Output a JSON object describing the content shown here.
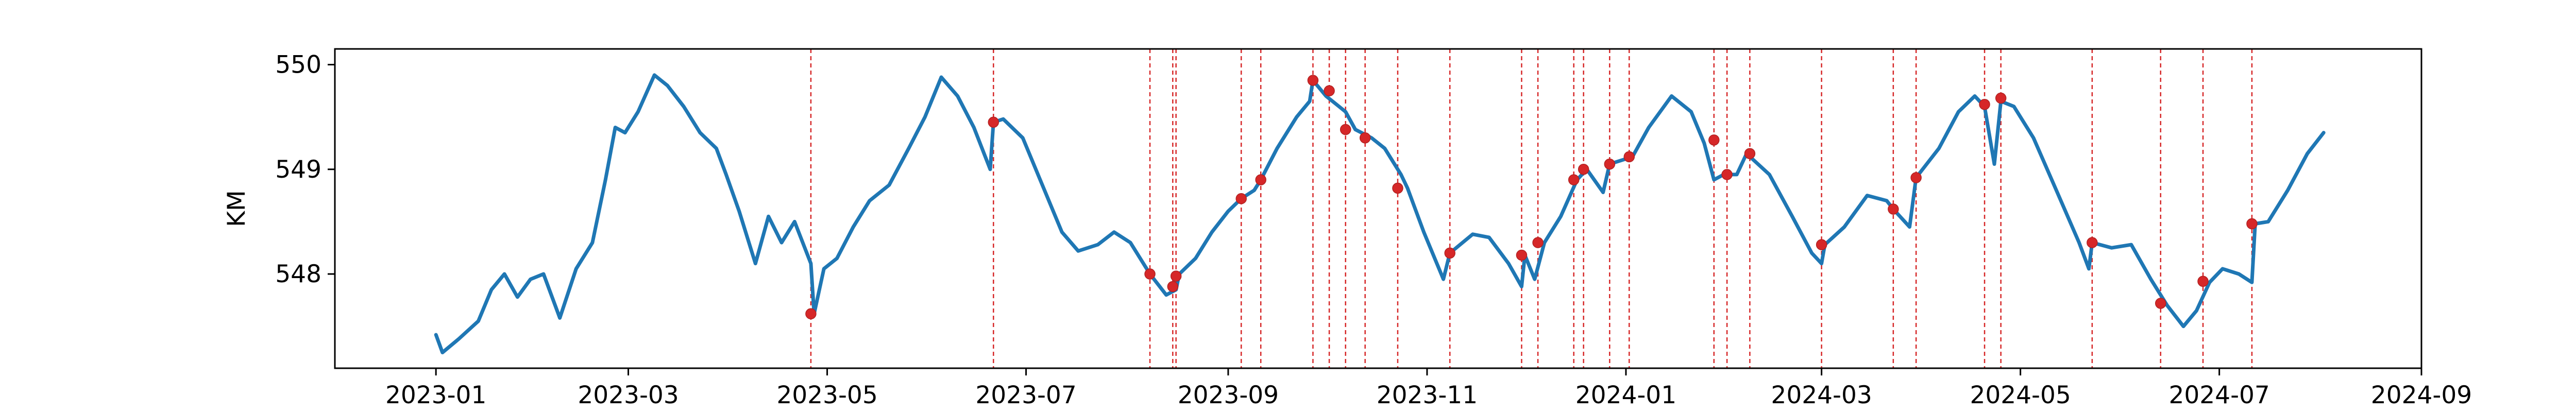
{
  "chart_data": {
    "type": "line",
    "title": "",
    "xlabel": "",
    "ylabel": "KM",
    "ylim": [
      547.1,
      550.15
    ],
    "xlim": [
      "2022-12-01",
      "2024-09-01"
    ],
    "x_ticks": [
      "2023-01",
      "2023-03",
      "2023-05",
      "2023-07",
      "2023-09",
      "2023-11",
      "2024-01",
      "2024-03",
      "2024-05",
      "2024-07",
      "2024-09"
    ],
    "y_ticks": [
      548,
      549,
      550
    ],
    "grid": false,
    "series": [
      {
        "name": "KM",
        "color": "#1f77b4",
        "points": [
          [
            "2023-01-01",
            547.42
          ],
          [
            "2023-01-03",
            547.25
          ],
          [
            "2023-01-08",
            547.38
          ],
          [
            "2023-01-14",
            547.55
          ],
          [
            "2023-01-18",
            547.85
          ],
          [
            "2023-01-22",
            548.0
          ],
          [
            "2023-01-26",
            547.78
          ],
          [
            "2023-01-30",
            547.95
          ],
          [
            "2023-02-03",
            548.0
          ],
          [
            "2023-02-08",
            547.58
          ],
          [
            "2023-02-13",
            548.05
          ],
          [
            "2023-02-18",
            548.3
          ],
          [
            "2023-02-22",
            548.9
          ],
          [
            "2023-02-25",
            549.4
          ],
          [
            "2023-02-28",
            549.35
          ],
          [
            "2023-03-04",
            549.55
          ],
          [
            "2023-03-09",
            549.9
          ],
          [
            "2023-03-13",
            549.8
          ],
          [
            "2023-03-18",
            549.6
          ],
          [
            "2023-03-23",
            549.35
          ],
          [
            "2023-03-28",
            549.2
          ],
          [
            "2023-03-31",
            548.95
          ],
          [
            "2023-04-04",
            548.6
          ],
          [
            "2023-04-09",
            548.1
          ],
          [
            "2023-04-13",
            548.55
          ],
          [
            "2023-04-17",
            548.3
          ],
          [
            "2023-04-21",
            548.5
          ],
          [
            "2023-04-26",
            548.1
          ],
          [
            "2023-04-27",
            547.62
          ],
          [
            "2023-04-30",
            548.05
          ],
          [
            "2023-05-04",
            548.15
          ],
          [
            "2023-05-09",
            548.45
          ],
          [
            "2023-05-14",
            548.7
          ],
          [
            "2023-05-20",
            548.85
          ],
          [
            "2023-05-26",
            549.2
          ],
          [
            "2023-05-31",
            549.5
          ],
          [
            "2023-06-05",
            549.88
          ],
          [
            "2023-06-10",
            549.7
          ],
          [
            "2023-06-15",
            549.4
          ],
          [
            "2023-06-20",
            549.0
          ],
          [
            "2023-06-21",
            549.45
          ],
          [
            "2023-06-24",
            549.48
          ],
          [
            "2023-06-30",
            549.3
          ],
          [
            "2023-07-06",
            548.85
          ],
          [
            "2023-07-12",
            548.4
          ],
          [
            "2023-07-17",
            548.22
          ],
          [
            "2023-07-23",
            548.28
          ],
          [
            "2023-07-28",
            548.4
          ],
          [
            "2023-08-02",
            548.3
          ],
          [
            "2023-08-08",
            548.0
          ],
          [
            "2023-08-13",
            547.8
          ],
          [
            "2023-08-16",
            547.85
          ],
          [
            "2023-08-17",
            548.0
          ],
          [
            "2023-08-22",
            548.15
          ],
          [
            "2023-08-27",
            548.4
          ],
          [
            "2023-09-01",
            548.6
          ],
          [
            "2023-09-05",
            548.72
          ],
          [
            "2023-09-09",
            548.8
          ],
          [
            "2023-09-11",
            548.9
          ],
          [
            "2023-09-16",
            549.2
          ],
          [
            "2023-09-22",
            549.5
          ],
          [
            "2023-09-26",
            549.65
          ],
          [
            "2023-09-27",
            549.85
          ],
          [
            "2023-10-01",
            549.7
          ],
          [
            "2023-10-05",
            549.6
          ],
          [
            "2023-10-07",
            549.55
          ],
          [
            "2023-10-10",
            549.38
          ],
          [
            "2023-10-15",
            549.3
          ],
          [
            "2023-10-19",
            549.2
          ],
          [
            "2023-10-24",
            548.95
          ],
          [
            "2023-10-26",
            548.82
          ],
          [
            "2023-10-31",
            548.4
          ],
          [
            "2023-11-06",
            547.95
          ],
          [
            "2023-11-08",
            548.2
          ],
          [
            "2023-11-15",
            548.38
          ],
          [
            "2023-11-20",
            548.35
          ],
          [
            "2023-11-26",
            548.1
          ],
          [
            "2023-11-30",
            547.88
          ],
          [
            "2023-12-01",
            548.18
          ],
          [
            "2023-12-04",
            547.95
          ],
          [
            "2023-12-07",
            548.3
          ],
          [
            "2023-12-12",
            548.55
          ],
          [
            "2023-12-17",
            548.9
          ],
          [
            "2023-12-20",
            549.0
          ],
          [
            "2023-12-25",
            548.78
          ],
          [
            "2023-12-27",
            549.05
          ],
          [
            "2024-01-03",
            549.12
          ],
          [
            "2024-01-08",
            549.4
          ],
          [
            "2024-01-15",
            549.7
          ],
          [
            "2024-01-21",
            549.55
          ],
          [
            "2024-01-25",
            549.25
          ],
          [
            "2024-01-28",
            548.9
          ],
          [
            "2024-01-31",
            548.95
          ],
          [
            "2024-02-04",
            548.95
          ],
          [
            "2024-02-07",
            549.15
          ],
          [
            "2024-02-14",
            548.95
          ],
          [
            "2024-02-21",
            548.55
          ],
          [
            "2024-02-27",
            548.2
          ],
          [
            "2024-03-01",
            548.1
          ],
          [
            "2024-03-02",
            548.28
          ],
          [
            "2024-03-08",
            548.45
          ],
          [
            "2024-03-15",
            548.75
          ],
          [
            "2024-03-21",
            548.7
          ],
          [
            "2024-03-23",
            548.62
          ],
          [
            "2024-03-28",
            548.45
          ],
          [
            "2024-03-30",
            548.92
          ],
          [
            "2024-04-06",
            549.2
          ],
          [
            "2024-04-12",
            549.55
          ],
          [
            "2024-04-17",
            549.7
          ],
          [
            "2024-04-20",
            549.6
          ],
          [
            "2024-04-23",
            549.05
          ],
          [
            "2024-04-25",
            549.65
          ],
          [
            "2024-04-29",
            549.6
          ],
          [
            "2024-05-05",
            549.3
          ],
          [
            "2024-05-12",
            548.8
          ],
          [
            "2024-05-19",
            548.3
          ],
          [
            "2024-05-22",
            548.05
          ],
          [
            "2024-05-23",
            548.3
          ],
          [
            "2024-05-29",
            548.25
          ],
          [
            "2024-06-04",
            548.28
          ],
          [
            "2024-06-10",
            547.95
          ],
          [
            "2024-06-15",
            547.7
          ],
          [
            "2024-06-20",
            547.5
          ],
          [
            "2024-06-24",
            547.65
          ],
          [
            "2024-06-28",
            547.92
          ],
          [
            "2024-07-02",
            548.05
          ],
          [
            "2024-07-07",
            548.0
          ],
          [
            "2024-07-11",
            547.92
          ],
          [
            "2024-07-12",
            548.48
          ],
          [
            "2024-07-16",
            548.5
          ],
          [
            "2024-07-22",
            548.8
          ],
          [
            "2024-07-28",
            549.15
          ],
          [
            "2024-08-02",
            549.35
          ]
        ]
      }
    ],
    "events": [
      {
        "date": "2023-04-26",
        "value": 547.62
      },
      {
        "date": "2023-06-21",
        "value": 549.45
      },
      {
        "date": "2023-08-08",
        "value": 548.0
      },
      {
        "date": "2023-08-15",
        "value": 547.88
      },
      {
        "date": "2023-08-16",
        "value": 547.98
      },
      {
        "date": "2023-09-05",
        "value": 548.72
      },
      {
        "date": "2023-09-11",
        "value": 548.9
      },
      {
        "date": "2023-09-27",
        "value": 549.85
      },
      {
        "date": "2023-10-02",
        "value": 549.75
      },
      {
        "date": "2023-10-07",
        "value": 549.38
      },
      {
        "date": "2023-10-13",
        "value": 549.3
      },
      {
        "date": "2023-10-23",
        "value": 548.82
      },
      {
        "date": "2023-11-08",
        "value": 548.2
      },
      {
        "date": "2023-11-30",
        "value": 548.18
      },
      {
        "date": "2023-12-05",
        "value": 548.3
      },
      {
        "date": "2023-12-16",
        "value": 548.9
      },
      {
        "date": "2023-12-19",
        "value": 549.0
      },
      {
        "date": "2023-12-27",
        "value": 549.05
      },
      {
        "date": "2024-01-02",
        "value": 549.12
      },
      {
        "date": "2024-01-28",
        "value": 549.28
      },
      {
        "date": "2024-02-01",
        "value": 548.95
      },
      {
        "date": "2024-02-08",
        "value": 549.15
      },
      {
        "date": "2024-03-01",
        "value": 548.28
      },
      {
        "date": "2024-03-23",
        "value": 548.62
      },
      {
        "date": "2024-03-30",
        "value": 548.92
      },
      {
        "date": "2024-04-20",
        "value": 549.62
      },
      {
        "date": "2024-04-25",
        "value": 549.68
      },
      {
        "date": "2024-05-23",
        "value": 548.3
      },
      {
        "date": "2024-06-13",
        "value": 547.72
      },
      {
        "date": "2024-06-26",
        "value": 547.93
      },
      {
        "date": "2024-07-11",
        "value": 548.48
      }
    ],
    "event_style": {
      "line_color": "#d62728",
      "marker_color": "#d62728",
      "line_dash": "dashed"
    }
  }
}
